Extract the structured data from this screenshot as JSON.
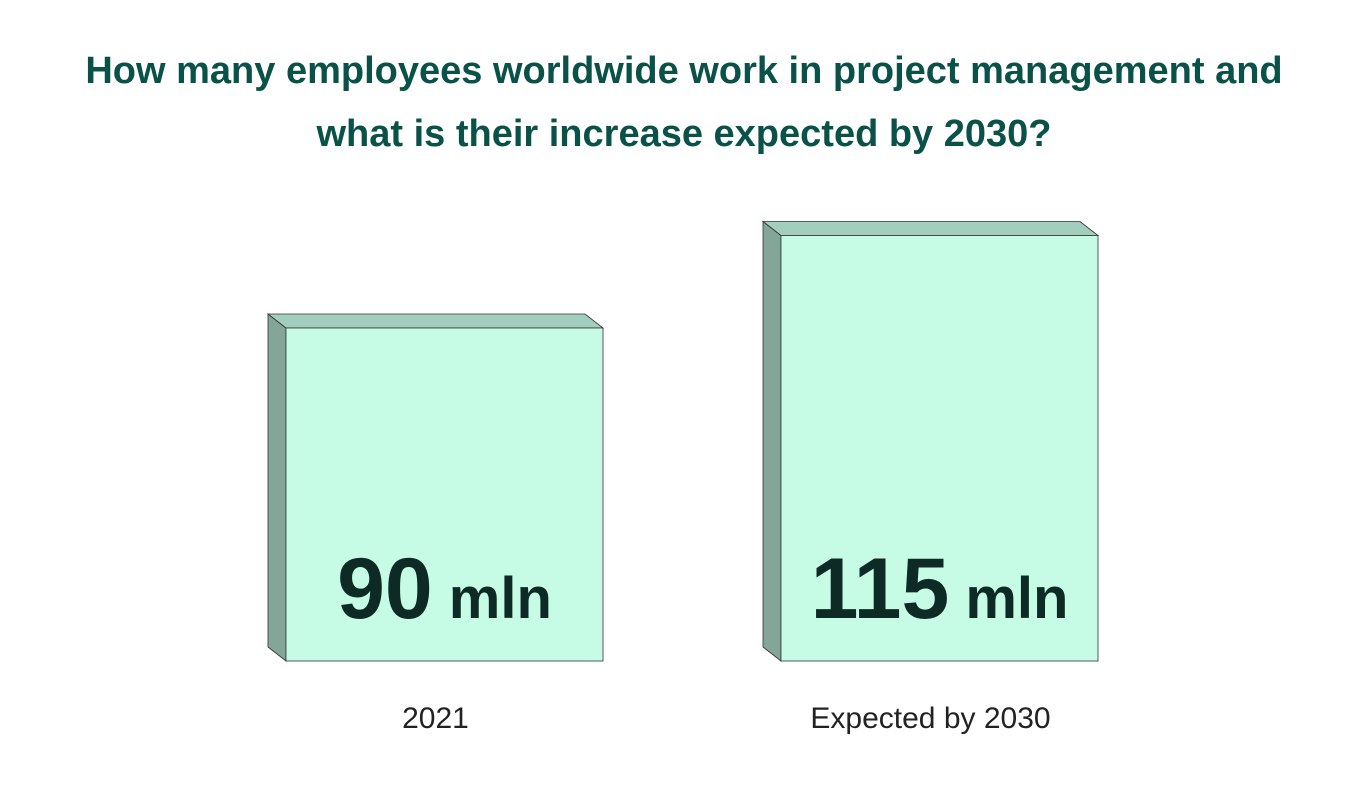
{
  "chart_data": {
    "type": "bar3d",
    "title": "How many employees worldwide work in project management and what is their increase expected by 2030?",
    "categories": [
      "2021",
      "Expected by 2030"
    ],
    "values": [
      90,
      115
    ],
    "unit": "mln",
    "color": "#c6fce6"
  }
}
